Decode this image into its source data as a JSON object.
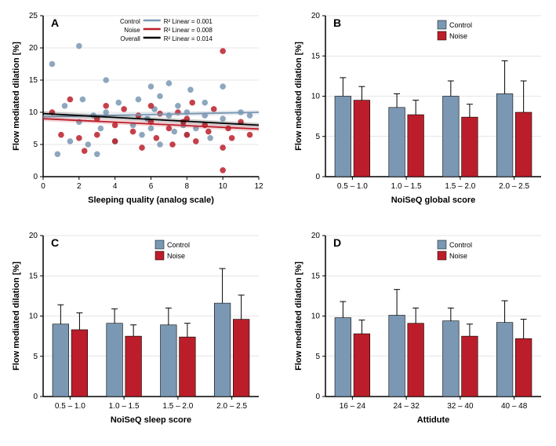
{
  "colors": {
    "control": "#7a98b3",
    "noise": "#bb1e2a",
    "overall": "#000000",
    "axis": "#000000",
    "grid": "#cccccc",
    "background": "#ffffff"
  },
  "labels": {
    "ylabel": "Flow mediated dilation [%]",
    "control": "Control",
    "noise": "Noise",
    "overall": "Overall"
  },
  "panelA": {
    "letter": "A",
    "xlabel": "Sleeping quality (analog scale)",
    "xlim": [
      0,
      12
    ],
    "ylim": [
      0,
      25
    ],
    "xticks": [
      0,
      2,
      4,
      6,
      8,
      10,
      12
    ],
    "yticks": [
      0,
      5,
      10,
      15,
      20,
      25
    ],
    "legend_r2": {
      "control": "R² Linear = 0.001",
      "noise": "R² Linear = 0.008",
      "overall": "R² Linear = 0.014"
    },
    "scatter_control": [
      [
        0.5,
        17.5
      ],
      [
        0.8,
        3.5
      ],
      [
        1.2,
        11
      ],
      [
        1.5,
        5.5
      ],
      [
        2,
        20.3
      ],
      [
        2,
        8.5
      ],
      [
        2.2,
        12
      ],
      [
        2.5,
        5
      ],
      [
        2.8,
        9.5
      ],
      [
        3,
        3.5
      ],
      [
        3.2,
        7.5
      ],
      [
        3.5,
        15
      ],
      [
        3.5,
        10
      ],
      [
        4,
        5.5
      ],
      [
        4.2,
        11.5
      ],
      [
        5,
        8
      ],
      [
        5.3,
        12
      ],
      [
        5.5,
        6.5
      ],
      [
        5.8,
        9
      ],
      [
        6,
        14
      ],
      [
        6,
        7.5
      ],
      [
        6.2,
        10.5
      ],
      [
        6.5,
        5
      ],
      [
        6.5,
        12.5
      ],
      [
        7,
        14.5
      ],
      [
        7,
        9.5
      ],
      [
        7.3,
        7
      ],
      [
        7.5,
        11
      ],
      [
        7.8,
        8
      ],
      [
        8,
        10
      ],
      [
        8,
        6.5
      ],
      [
        8.2,
        13.5
      ],
      [
        8.5,
        7.5
      ],
      [
        9,
        9.5
      ],
      [
        9,
        11.5
      ],
      [
        9.3,
        6
      ],
      [
        10,
        14
      ],
      [
        10,
        9
      ],
      [
        11,
        10
      ],
      [
        11.5,
        9.5
      ]
    ],
    "scatter_noise": [
      [
        0.5,
        10
      ],
      [
        1,
        6.5
      ],
      [
        1.5,
        12
      ],
      [
        2,
        6
      ],
      [
        2.3,
        4
      ],
      [
        3,
        9
      ],
      [
        3,
        6.5
      ],
      [
        3.5,
        11
      ],
      [
        4,
        8
      ],
      [
        4,
        5.5
      ],
      [
        4.5,
        10.5
      ],
      [
        5,
        7
      ],
      [
        5.3,
        9.5
      ],
      [
        5.5,
        4.5
      ],
      [
        6,
        8.5
      ],
      [
        6,
        11
      ],
      [
        6.3,
        6
      ],
      [
        6.5,
        9.8
      ],
      [
        7,
        7.5
      ],
      [
        7.2,
        5
      ],
      [
        7.5,
        10
      ],
      [
        7.8,
        8.5
      ],
      [
        8,
        6.5
      ],
      [
        8,
        9
      ],
      [
        8.3,
        11.5
      ],
      [
        8.5,
        5.5
      ],
      [
        9,
        8
      ],
      [
        9.2,
        7
      ],
      [
        9.5,
        10.5
      ],
      [
        10,
        1
      ],
      [
        10,
        19.5
      ],
      [
        10,
        4.5
      ],
      [
        10.3,
        7.5
      ],
      [
        10.5,
        6
      ],
      [
        11,
        8.5
      ],
      [
        11.5,
        6.5
      ]
    ],
    "line_control": {
      "y1": 9.3,
      "y2": 10.0
    },
    "line_noise": {
      "y1": 9.0,
      "y2": 7.4
    },
    "line_overall": {
      "y1": 9.8,
      "y2": 8.0
    }
  },
  "panelB": {
    "letter": "B",
    "xlabel": "NoiSeQ global score",
    "categories": [
      "0.5 – 1.0",
      "1.0 – 1.5",
      "1.5 – 2.0",
      "2.0 – 2.5"
    ],
    "ylim": [
      0,
      20
    ],
    "yticks": [
      0,
      5,
      10,
      15,
      20
    ],
    "control": [
      10.0,
      8.6,
      10.0,
      10.3
    ],
    "noise": [
      9.5,
      7.7,
      7.4,
      8.0
    ],
    "control_err": [
      2.3,
      1.7,
      1.9,
      4.1
    ],
    "noise_err": [
      1.7,
      1.8,
      1.6,
      3.9
    ]
  },
  "panelC": {
    "letter": "C",
    "xlabel": "NoiSeQ sleep score",
    "categories": [
      "0.5 – 1.0",
      "1.0 – 1.5",
      "1.5 – 2.0",
      "2.0 – 2.5"
    ],
    "ylim": [
      0,
      20
    ],
    "yticks": [
      0,
      5,
      10,
      15,
      20
    ],
    "control": [
      9.0,
      9.1,
      8.9,
      11.6
    ],
    "noise": [
      8.3,
      7.5,
      7.4,
      9.6
    ],
    "control_err": [
      2.4,
      1.8,
      2.1,
      4.3
    ],
    "noise_err": [
      2.1,
      1.4,
      1.7,
      3.0
    ]
  },
  "panelD": {
    "letter": "D",
    "xlabel": "Attidute",
    "categories": [
      "16 – 24",
      "24 – 32",
      "32 – 40",
      "40 – 48"
    ],
    "ylim": [
      0,
      20
    ],
    "yticks": [
      0,
      5,
      10,
      15,
      20
    ],
    "control": [
      9.8,
      10.1,
      9.4,
      9.2
    ],
    "noise": [
      7.8,
      9.1,
      7.5,
      7.2
    ],
    "control_err": [
      2.0,
      3.2,
      1.6,
      2.7
    ],
    "noise_err": [
      1.7,
      1.9,
      1.5,
      2.4
    ]
  }
}
